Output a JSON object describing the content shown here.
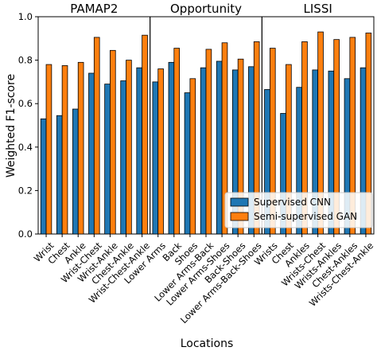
{
  "chart_data": {
    "type": "bar",
    "xlabel": "Locations",
    "ylabel": "Weighted F1-score",
    "ylim": [
      0,
      1.0
    ],
    "yticks": [
      "0.0",
      "0.2",
      "0.4",
      "0.6",
      "0.8",
      "1.0"
    ],
    "legend_position": "lower-right",
    "series": [
      {
        "name": "Supervised CNN",
        "color": "#1f77b4"
      },
      {
        "name": "Semi-supervised GAN",
        "color": "#ff7f0e"
      }
    ],
    "groups": [
      {
        "title": "PAMAP2",
        "categories": [
          "Wrist",
          "Chest",
          "Ankle",
          "Wrist-Chest",
          "Wrist-Ankle",
          "Chest-Ankle",
          "Wrist-Chest-Ankle"
        ],
        "supervised": [
          0.53,
          0.545,
          0.575,
          0.74,
          0.69,
          0.705,
          0.765
        ],
        "semi_supervised": [
          0.78,
          0.775,
          0.79,
          0.905,
          0.845,
          0.8,
          0.915
        ]
      },
      {
        "title": "Opportunity",
        "categories": [
          "Lower Arms",
          "Back",
          "Shoes",
          "Lower Arms-Back",
          "Lower Arms-Shoes",
          "Back-Shoes",
          "Lower Arms-Back-Shoes"
        ],
        "supervised": [
          0.7,
          0.79,
          0.65,
          0.765,
          0.795,
          0.755,
          0.77
        ],
        "semi_supervised": [
          0.76,
          0.855,
          0.715,
          0.85,
          0.88,
          0.805,
          0.885
        ]
      },
      {
        "title": "LISSI",
        "categories": [
          "Wrists",
          "Chest",
          "Ankles",
          "Wrists-Chest",
          "Wrists-Ankles",
          "Chest-Ankles",
          "Wrists-Chest-Ankle"
        ],
        "supervised": [
          0.665,
          0.555,
          0.675,
          0.755,
          0.75,
          0.715,
          0.765
        ],
        "semi_supervised": [
          0.855,
          0.78,
          0.885,
          0.93,
          0.895,
          0.905,
          0.925
        ]
      }
    ]
  }
}
